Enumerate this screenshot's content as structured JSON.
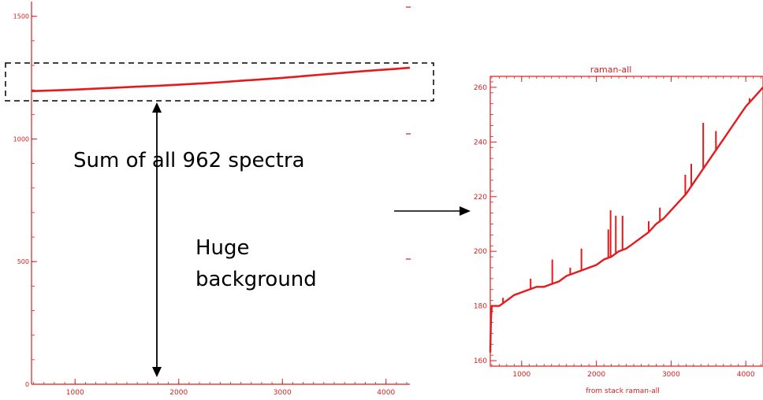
{
  "annotations": {
    "sum_label": "Sum of all 962 spectra",
    "background_line1": "Huge",
    "background_line2": "background"
  },
  "chart_data": [
    {
      "type": "line",
      "title": "",
      "xlabel": "from stack raman-all",
      "ylabel": "",
      "xlim": [
        580,
        4230
      ],
      "ylim": [
        0,
        1560
      ],
      "x_ticks": [
        1000,
        2000,
        3000,
        4000
      ],
      "y_ticks": [
        0,
        500,
        1000,
        1500
      ],
      "color": "#e41a1c",
      "series": [
        {
          "values": [
            [
              580,
              1195
            ],
            [
              800,
              1198
            ],
            [
              1000,
              1201
            ],
            [
              1200,
              1205
            ],
            [
              1400,
              1209
            ],
            [
              1600,
              1213
            ],
            [
              1800,
              1217
            ],
            [
              2000,
              1221
            ],
            [
              2200,
              1226
            ],
            [
              2400,
              1231
            ],
            [
              2600,
              1237
            ],
            [
              2800,
              1243
            ],
            [
              3000,
              1249
            ],
            [
              3200,
              1256
            ],
            [
              3400,
              1263
            ],
            [
              3600,
              1270
            ],
            [
              3800,
              1277
            ],
            [
              4000,
              1283
            ],
            [
              4230,
              1290
            ]
          ]
        }
      ]
    },
    {
      "type": "line",
      "title": "raman-all",
      "xlabel": "from stack raman-all",
      "ylabel": "",
      "xlim": [
        580,
        4230
      ],
      "ylim": [
        158,
        264
      ],
      "x_ticks": [
        1000,
        2000,
        3000,
        4000
      ],
      "y_ticks": [
        160,
        180,
        200,
        220,
        240,
        260
      ],
      "color": "#e41a1c",
      "series": [
        {
          "values": [
            [
              580,
              163
            ],
            [
              590,
              175
            ],
            [
              600,
              180
            ],
            [
              700,
              180
            ],
            [
              800,
              182
            ],
            [
              900,
              184
            ],
            [
              1000,
              185
            ],
            [
              1100,
              186
            ],
            [
              1200,
              187
            ],
            [
              1300,
              187
            ],
            [
              1400,
              188
            ],
            [
              1500,
              189
            ],
            [
              1600,
              191
            ],
            [
              1700,
              192
            ],
            [
              1800,
              193
            ],
            [
              1900,
              194
            ],
            [
              2000,
              195
            ],
            [
              2100,
              197
            ],
            [
              2200,
              198
            ],
            [
              2300,
              200
            ],
            [
              2400,
              201
            ],
            [
              2500,
              203
            ],
            [
              2600,
              205
            ],
            [
              2700,
              207
            ],
            [
              2800,
              210
            ],
            [
              2900,
              212
            ],
            [
              3000,
              215
            ],
            [
              3100,
              218
            ],
            [
              3200,
              221
            ],
            [
              3300,
              225
            ],
            [
              3400,
              229
            ],
            [
              3500,
              233
            ],
            [
              3600,
              237
            ],
            [
              3700,
              241
            ],
            [
              3800,
              245
            ],
            [
              3900,
              249
            ],
            [
              4000,
              253
            ],
            [
              4100,
              256
            ],
            [
              4230,
              260
            ]
          ]
        }
      ],
      "spikes": [
        [
          750,
          183
        ],
        [
          1120,
          190
        ],
        [
          1410,
          197
        ],
        [
          1650,
          194
        ],
        [
          1800,
          201
        ],
        [
          2160,
          208
        ],
        [
          2190,
          215
        ],
        [
          2260,
          213
        ],
        [
          2350,
          213
        ],
        [
          2700,
          211
        ],
        [
          2850,
          216
        ],
        [
          3190,
          228
        ],
        [
          3270,
          232
        ],
        [
          3430,
          247
        ],
        [
          3600,
          244
        ],
        [
          4050,
          256
        ]
      ]
    }
  ]
}
